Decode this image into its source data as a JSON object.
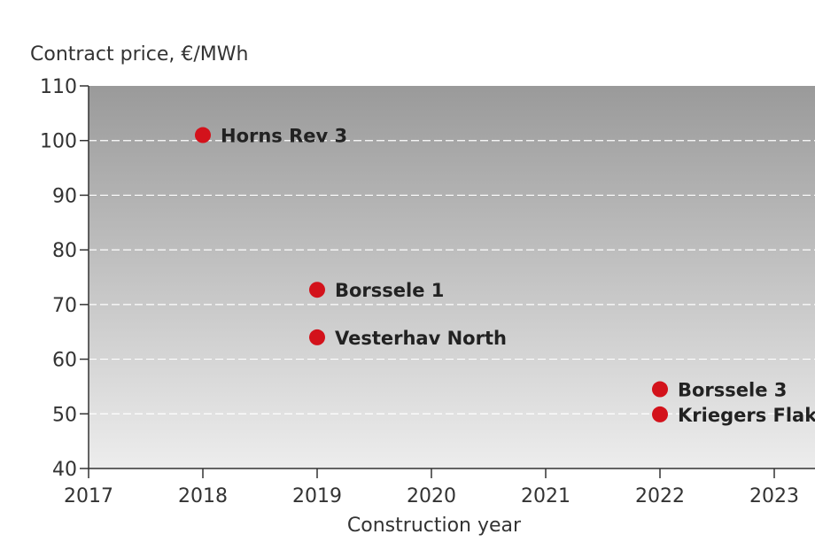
{
  "chart_data": {
    "type": "scatter",
    "title": "",
    "ylabel": "Contract price, €/MWh",
    "xlabel": "Construction year",
    "xlim": [
      2017,
      2023.5
    ],
    "ylim": [
      40,
      110
    ],
    "x_ticks": [
      "2017",
      "2018",
      "2019",
      "2020",
      "2021",
      "2022",
      "2023"
    ],
    "y_ticks": [
      "40",
      "50",
      "60",
      "70",
      "80",
      "90",
      "100",
      "110"
    ],
    "grid": true,
    "colors": {
      "point": "#d3121b",
      "background_top": "#9a9a9a",
      "background_bottom": "#ededed",
      "gridline": "#ffffff"
    },
    "points": [
      {
        "label": "Horns Rev 3",
        "x": 2018,
        "y": 101
      },
      {
        "label": "Borssele 1",
        "x": 2019,
        "y": 72.7
      },
      {
        "label": "Vesterhav North",
        "x": 2019,
        "y": 64
      },
      {
        "label": "Borssele 3",
        "x": 2022,
        "y": 54.5
      },
      {
        "label": "Kriegers Flak",
        "x": 2022,
        "y": 49.9
      }
    ]
  }
}
